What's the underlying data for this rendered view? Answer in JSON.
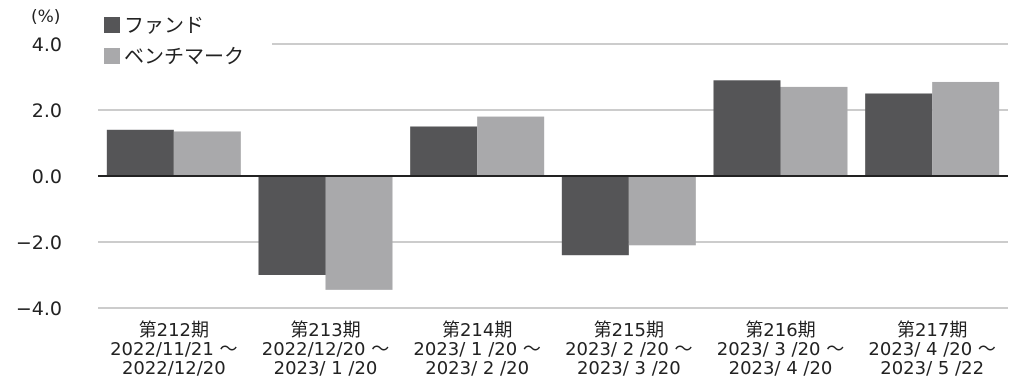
{
  "chart_data": {
    "type": "bar",
    "unit": "(%)",
    "ylim": [
      -4.0,
      4.0
    ],
    "yticks": [
      "4.0",
      "2.0",
      "0.0",
      "−2.0",
      "−4.0"
    ],
    "ytick_values": [
      4.0,
      2.0,
      0.0,
      -2.0,
      -4.0
    ],
    "grid": true,
    "legend_position": "top-left",
    "categories": [
      {
        "period": "第212期",
        "from": "2022/11/21 ～",
        "to": "2022/12/20"
      },
      {
        "period": "第213期",
        "from": "2022/12/20 ～",
        "to": "2023/ 1 /20"
      },
      {
        "period": "第214期",
        "from": "2023/ 1 /20 ～",
        "to": "2023/ 2 /20"
      },
      {
        "period": "第215期",
        "from": "2023/ 2 /20 ～",
        "to": "2023/ 3 /20"
      },
      {
        "period": "第216期",
        "from": "2023/ 3 /20 ～",
        "to": "2023/ 4 /20"
      },
      {
        "period": "第217期",
        "from": "2023/ 4 /20 ～",
        "to": "2023/ 5 /22"
      }
    ],
    "series": [
      {
        "name": "ファンド",
        "color": "#555557",
        "values": [
          1.4,
          -3.0,
          1.5,
          -2.4,
          2.9,
          2.5
        ]
      },
      {
        "name": "ベンチマーク",
        "color": "#a9a9ab",
        "values": [
          1.35,
          -3.45,
          1.8,
          -2.1,
          2.7,
          2.85
        ]
      }
    ]
  }
}
